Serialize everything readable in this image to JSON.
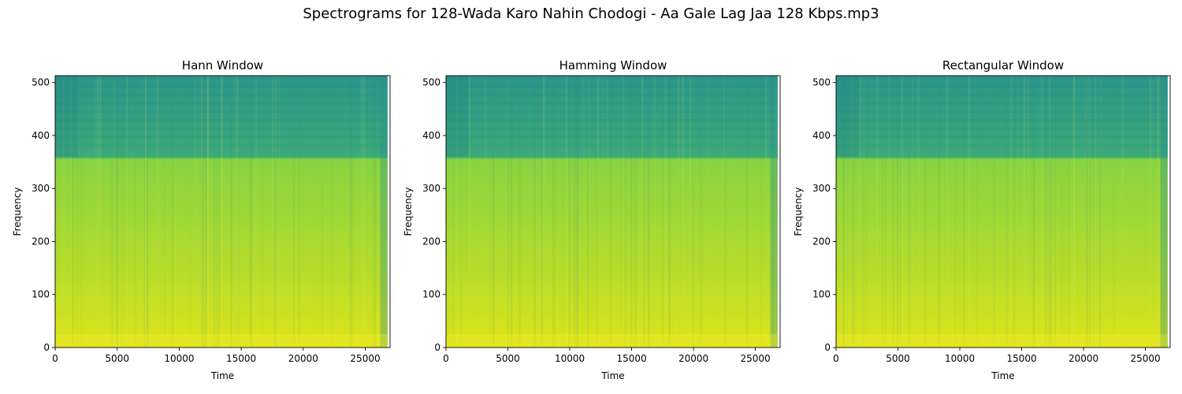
{
  "figure": {
    "title": "Spectrograms for 128-Wada Karo Nahin Chodogi - Aa Gale Lag Jaa 128 Kbps.mp3"
  },
  "colors": {
    "colormap": "viridis",
    "axis": "#000000",
    "background": "#ffffff"
  },
  "chart_data": [
    {
      "type": "heatmap",
      "title": "Hann Window",
      "xlabel": "Time",
      "ylabel": "Frequency",
      "xlim": [
        0,
        27000
      ],
      "ylim": [
        0,
        513
      ],
      "data_extent_x": [
        0,
        26800
      ],
      "xticks": [
        0,
        5000,
        10000,
        15000,
        20000,
        25000
      ],
      "yticks": [
        0,
        100,
        200,
        300,
        400,
        500
      ],
      "grid": false,
      "colormap": "viridis",
      "band_edge_frequency": 360
    },
    {
      "type": "heatmap",
      "title": "Hamming Window",
      "xlabel": "Time",
      "ylabel": "Frequency",
      "xlim": [
        0,
        27000
      ],
      "ylim": [
        0,
        513
      ],
      "data_extent_x": [
        0,
        26800
      ],
      "xticks": [
        0,
        5000,
        10000,
        15000,
        20000,
        25000
      ],
      "yticks": [
        0,
        100,
        200,
        300,
        400,
        500
      ],
      "grid": false,
      "colormap": "viridis",
      "band_edge_frequency": 360
    },
    {
      "type": "heatmap",
      "title": "Rectangular Window",
      "xlabel": "Time",
      "ylabel": "Frequency",
      "xlim": [
        0,
        27000
      ],
      "ylim": [
        0,
        513
      ],
      "data_extent_x": [
        0,
        26800
      ],
      "xticks": [
        0,
        5000,
        10000,
        15000,
        20000,
        25000
      ],
      "yticks": [
        0,
        100,
        200,
        300,
        400,
        500
      ],
      "grid": false,
      "colormap": "viridis",
      "band_edge_frequency": 360
    }
  ]
}
